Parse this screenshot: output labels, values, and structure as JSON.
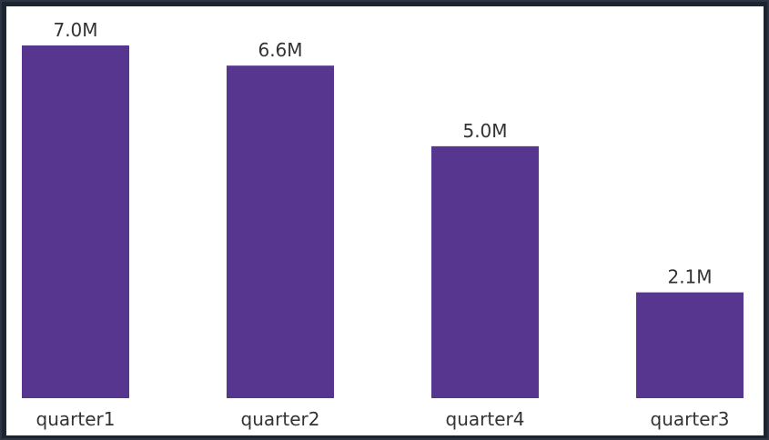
{
  "chart_data": {
    "type": "bar",
    "title": "",
    "xlabel": "",
    "ylabel": "",
    "categories": [
      "quarter1",
      "quarter2",
      "quarter4",
      "quarter3"
    ],
    "values": [
      7000000,
      6600000,
      5000000,
      2100000
    ],
    "value_labels": [
      "7.0M",
      "6.6M",
      "5.0M",
      "2.1M"
    ],
    "ylim": [
      0,
      7000000
    ],
    "grid": false,
    "legend": "none",
    "bar_color": "#56368F",
    "background_color": "#FFFFFF",
    "frame_color": "#1B2430"
  }
}
